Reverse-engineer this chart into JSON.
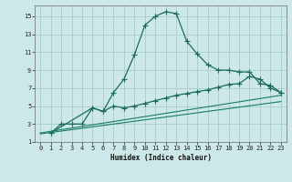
{
  "xlabel": "Humidex (Indice chaleur)",
  "bg_color": "#cce8e8",
  "grid_color": "#aacccc",
  "line_color1": "#1a6b5a",
  "line_color2": "#1a7a6a",
  "xlim": [
    -0.5,
    23.5
  ],
  "ylim": [
    1,
    16.2
  ],
  "xticks": [
    0,
    1,
    2,
    3,
    4,
    5,
    6,
    7,
    8,
    9,
    10,
    11,
    12,
    13,
    14,
    15,
    16,
    17,
    18,
    19,
    20,
    21,
    22,
    23
  ],
  "yticks": [
    1,
    3,
    5,
    7,
    9,
    11,
    13,
    15
  ],
  "line1_x": [
    1,
    2,
    3,
    4,
    5,
    6,
    7,
    8,
    9,
    10,
    11,
    12,
    13,
    14,
    15,
    16,
    17,
    18,
    19,
    20,
    21,
    22,
    23
  ],
  "line1_y": [
    2,
    3,
    3,
    3,
    4.8,
    4.4,
    6.5,
    8.0,
    10.7,
    14.0,
    15.0,
    15.5,
    15.3,
    12.2,
    10.8,
    9.6,
    9.0,
    9.0,
    8.8,
    8.8,
    7.5,
    7.3,
    6.5
  ],
  "line2_x": [
    1,
    5,
    6,
    7,
    8,
    9,
    10,
    11,
    12,
    13,
    14,
    15,
    16,
    17,
    18,
    19,
    20,
    21,
    22,
    23
  ],
  "line2_y": [
    2,
    4.8,
    4.4,
    5.0,
    4.8,
    5.0,
    5.3,
    5.6,
    5.9,
    6.2,
    6.4,
    6.6,
    6.8,
    7.1,
    7.4,
    7.5,
    8.3,
    8.0,
    7.0,
    6.5
  ],
  "line3_x": [
    0,
    23
  ],
  "line3_y": [
    2.0,
    6.2
  ],
  "line4_x": [
    0,
    23
  ],
  "line4_y": [
    1.9,
    5.5
  ]
}
